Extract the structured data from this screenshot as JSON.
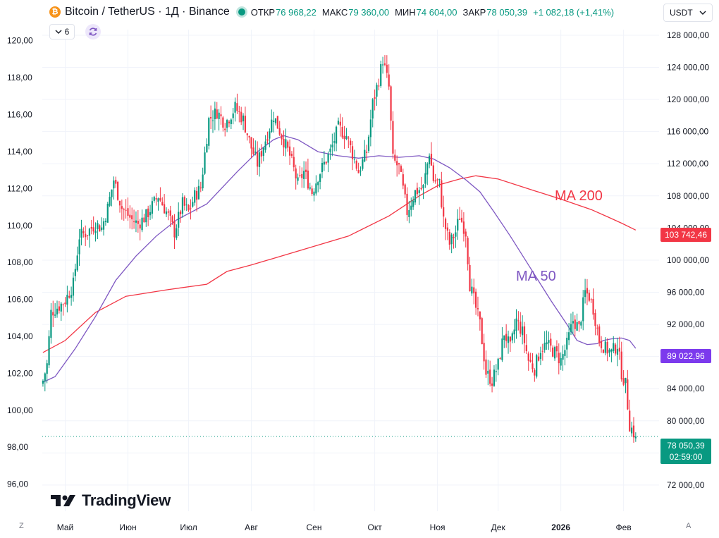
{
  "header": {
    "symbol_title": "Bitcoin / TetherUS · 1Д · Binance",
    "ohlc": [
      {
        "label": "ОТКР",
        "value": "76 968,22"
      },
      {
        "label": "МАКС",
        "value": "79 360,00"
      },
      {
        "label": "МИН",
        "value": "74 604,00"
      },
      {
        "label": "ЗАКР",
        "value": "78 050,39"
      }
    ],
    "change": "+1 082,18 (+1,41%)"
  },
  "toolbar": {
    "indicator_count": "6",
    "currency": "USDT"
  },
  "brand": {
    "logo_text": "TradingView"
  },
  "corners": {
    "left": "Z",
    "right": "A"
  },
  "labels": {
    "ma200": "MA 200",
    "ma50": "MA 50"
  },
  "price_tags": {
    "ma200": "103 742,46",
    "ma50": "89 022,96",
    "last_price": "78 050,39",
    "countdown": "02:59:00"
  },
  "colors": {
    "up": "#089981",
    "down": "#f23645",
    "ma200": "#f23645",
    "ma50": "#7e57c2",
    "ma50_tag": "#7c3aed",
    "grid": "#f0f3fa"
  },
  "chart_data": {
    "type": "candlestick",
    "left_axis": {
      "ticks": [
        "120,00",
        "118,00",
        "116,00",
        "114,00",
        "112,00",
        "110,00",
        "108,00",
        "106,00",
        "104,00",
        "102,00",
        "100,00",
        "98,00",
        "96,00"
      ],
      "range": [
        95.3,
        120.6
      ]
    },
    "right_axis": {
      "ticks": [
        "128 000,00",
        "124 000,00",
        "120 000,00",
        "116 000,00",
        "112 000,00",
        "108 000,00",
        "104 000,00",
        "100 000,00",
        "96 000,00",
        "92 000,00",
        "88 000,00",
        "84 000,00",
        "80 000,00",
        "76 000,00",
        "72 000,00"
      ],
      "range": [
        70500,
        128700
      ]
    },
    "x_labels": [
      {
        "label": "Май",
        "day": 0,
        "bold": false
      },
      {
        "label": "Июн",
        "day": 31,
        "bold": false
      },
      {
        "label": "Июл",
        "day": 61,
        "bold": false
      },
      {
        "label": "Авг",
        "day": 92,
        "bold": false
      },
      {
        "label": "Сен",
        "day": 123,
        "bold": false
      },
      {
        "label": "Окт",
        "day": 153,
        "bold": false
      },
      {
        "label": "Ноя",
        "day": 184,
        "bold": false
      },
      {
        "label": "Дек",
        "day": 214,
        "bold": false
      },
      {
        "label": "2026",
        "day": 245,
        "bold": true
      },
      {
        "label": "Фев",
        "day": 276,
        "bold": false
      }
    ],
    "close_keypoints": [
      [
        -11,
        85000
      ],
      [
        -9,
        87000
      ],
      [
        -7,
        93500
      ],
      [
        -2,
        94500
      ],
      [
        0,
        95000
      ],
      [
        4,
        97000
      ],
      [
        7,
        103000
      ],
      [
        11,
        103500
      ],
      [
        15,
        104500
      ],
      [
        18,
        104000
      ],
      [
        21,
        106500
      ],
      [
        24,
        110000
      ],
      [
        28,
        106500
      ],
      [
        33,
        105000
      ],
      [
        36,
        104500
      ],
      [
        40,
        105500
      ],
      [
        46,
        108000
      ],
      [
        51,
        105500
      ],
      [
        54,
        103500
      ],
      [
        58,
        107000
      ],
      [
        61,
        106000
      ],
      [
        64,
        108000
      ],
      [
        67,
        109000
      ],
      [
        71,
        117500
      ],
      [
        75,
        118500
      ],
      [
        79,
        117000
      ],
      [
        84,
        119000
      ],
      [
        88,
        117500
      ],
      [
        92,
        114000
      ],
      [
        95,
        112000
      ],
      [
        99,
        115000
      ],
      [
        103,
        118000
      ],
      [
        107,
        115500
      ],
      [
        111,
        113000
      ],
      [
        115,
        109500
      ],
      [
        118,
        111000
      ],
      [
        122,
        108500
      ],
      [
        125,
        110500
      ],
      [
        128,
        112000
      ],
      [
        131,
        113500
      ],
      [
        135,
        116500
      ],
      [
        139,
        115500
      ],
      [
        143,
        112500
      ],
      [
        145,
        111000
      ],
      [
        149,
        113500
      ],
      [
        152,
        119500
      ],
      [
        155,
        122500
      ],
      [
        157,
        125000
      ],
      [
        160,
        121500
      ],
      [
        162,
        112500
      ],
      [
        165,
        111500
      ],
      [
        169,
        106000
      ],
      [
        173,
        108500
      ],
      [
        177,
        109000
      ],
      [
        180,
        113500
      ],
      [
        182,
        110000
      ],
      [
        185,
        109500
      ],
      [
        187,
        105000
      ],
      [
        190,
        102000
      ],
      [
        193,
        103500
      ],
      [
        195,
        105500
      ],
      [
        198,
        103500
      ],
      [
        200,
        97000
      ],
      [
        202,
        95000
      ],
      [
        205,
        92000
      ],
      [
        208,
        86000
      ],
      [
        211,
        85000
      ],
      [
        214,
        87000
      ],
      [
        217,
        91000
      ],
      [
        220,
        89000
      ],
      [
        223,
        92500
      ],
      [
        226,
        91000
      ],
      [
        229,
        87500
      ],
      [
        232,
        86500
      ],
      [
        235,
        89000
      ],
      [
        238,
        89500
      ],
      [
        242,
        88500
      ],
      [
        245,
        87500
      ],
      [
        248,
        89500
      ],
      [
        251,
        92500
      ],
      [
        254,
        91500
      ],
      [
        257,
        96000
      ],
      [
        259,
        95500
      ],
      [
        261,
        94000
      ],
      [
        264,
        90000
      ],
      [
        267,
        89000
      ],
      [
        270,
        88500
      ],
      [
        273,
        89500
      ],
      [
        275,
        86000
      ],
      [
        277,
        84500
      ],
      [
        279,
        79500
      ],
      [
        281,
        78500
      ],
      [
        282,
        78050
      ]
    ],
    "series": [
      {
        "name": "MA 200",
        "last_value": 103742.46,
        "points": [
          [
            -11,
            88500
          ],
          [
            0,
            90000
          ],
          [
            15,
            93500
          ],
          [
            30,
            95500
          ],
          [
            50,
            96300
          ],
          [
            70,
            97000
          ],
          [
            80,
            98600
          ],
          [
            92,
            99400
          ],
          [
            120,
            101500
          ],
          [
            140,
            103000
          ],
          [
            160,
            105500
          ],
          [
            175,
            108000
          ],
          [
            185,
            109400
          ],
          [
            195,
            110100
          ],
          [
            203,
            110500
          ],
          [
            214,
            110100
          ],
          [
            230,
            108800
          ],
          [
            245,
            107600
          ],
          [
            260,
            106300
          ],
          [
            268,
            105400
          ],
          [
            275,
            104600
          ],
          [
            282,
            103742
          ]
        ]
      },
      {
        "name": "MA 50",
        "last_value": 89022.96,
        "points": [
          [
            -11,
            84800
          ],
          [
            -5,
            85500
          ],
          [
            5,
            89000
          ],
          [
            15,
            93000
          ],
          [
            25,
            97500
          ],
          [
            35,
            100500
          ],
          [
            45,
            103000
          ],
          [
            55,
            105000
          ],
          [
            70,
            107000
          ],
          [
            85,
            111000
          ],
          [
            95,
            113500
          ],
          [
            103,
            115000
          ],
          [
            108,
            115500
          ],
          [
            115,
            115000
          ],
          [
            125,
            113500
          ],
          [
            135,
            113000
          ],
          [
            145,
            112700
          ],
          [
            155,
            113000
          ],
          [
            165,
            112800
          ],
          [
            175,
            113000
          ],
          [
            182,
            112600
          ],
          [
            190,
            111500
          ],
          [
            198,
            110000
          ],
          [
            205,
            108500
          ],
          [
            212,
            106000
          ],
          [
            220,
            103000
          ],
          [
            230,
            99000
          ],
          [
            240,
            95000
          ],
          [
            248,
            92000
          ],
          [
            253,
            90000
          ],
          [
            258,
            89500
          ],
          [
            263,
            89600
          ],
          [
            266,
            90000
          ],
          [
            270,
            90200
          ],
          [
            275,
            90300
          ],
          [
            279,
            90000
          ],
          [
            282,
            89022
          ]
        ]
      }
    ]
  }
}
